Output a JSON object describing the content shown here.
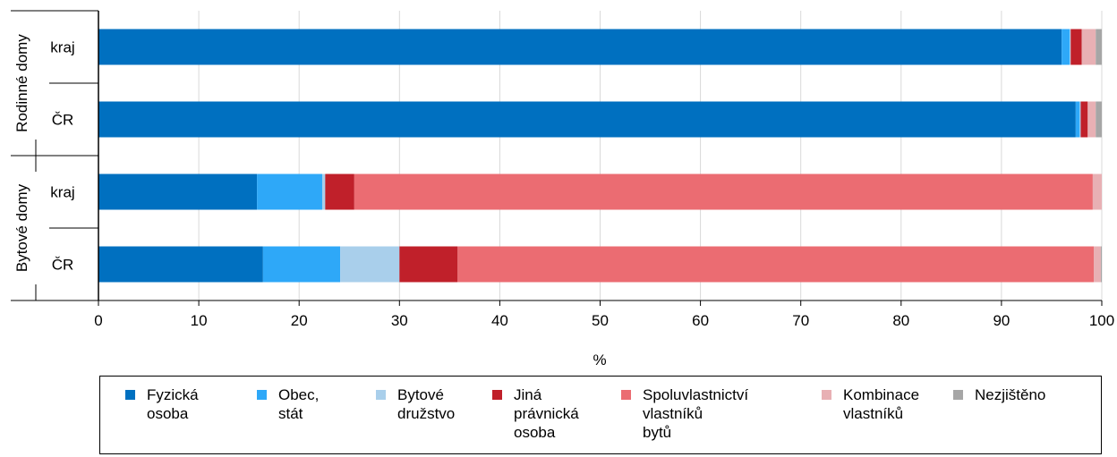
{
  "chart_data": {
    "type": "bar",
    "orientation": "horizontal",
    "stacked": true,
    "groups": [
      {
        "label": "Rodinné domy",
        "categories": [
          "kraj",
          "ČR"
        ]
      },
      {
        "label": "Bytové domy",
        "categories": [
          "kraj",
          "ČR"
        ]
      }
    ],
    "rows": [
      "Rodinné domy – kraj",
      "Rodinné domy – ČR",
      "Bytové domy – kraj",
      "Bytové domy – ČR"
    ],
    "series": [
      {
        "name": "Fyzická\nosoba",
        "color": "#0070C0",
        "values": [
          96.0,
          97.4,
          15.8,
          16.4
        ]
      },
      {
        "name": "Obec,\nstát",
        "color": "#2EA8F8",
        "values": [
          0.8,
          0.4,
          6.5,
          7.7
        ]
      },
      {
        "name": "Bytové\ndružstvo",
        "color": "#A9CFEB",
        "values": [
          0.1,
          0.1,
          0.3,
          5.9
        ]
      },
      {
        "name": "Jiná\nprávnická\nosoba",
        "color": "#C0202A",
        "values": [
          1.1,
          0.7,
          2.9,
          5.8
        ]
      },
      {
        "name": "Spoluvlastnictví\nvlastníků\nbytů",
        "color": "#EB6C72",
        "values": [
          0.0,
          0.0,
          73.6,
          63.4
        ]
      },
      {
        "name": "Kombinace\nvlastníků",
        "color": "#E8B0B4",
        "values": [
          1.4,
          0.8,
          0.9,
          0.7
        ]
      },
      {
        "name": "Nezjištěno",
        "color": "#A6A6A6",
        "values": [
          0.6,
          0.6,
          0.0,
          0.1
        ]
      }
    ],
    "xlabel": "%",
    "xlim": [
      0,
      100
    ],
    "xticks": [
      0,
      10,
      20,
      30,
      40,
      50,
      60,
      70,
      80,
      90,
      100
    ],
    "grid": true,
    "legend_position": "bottom"
  }
}
